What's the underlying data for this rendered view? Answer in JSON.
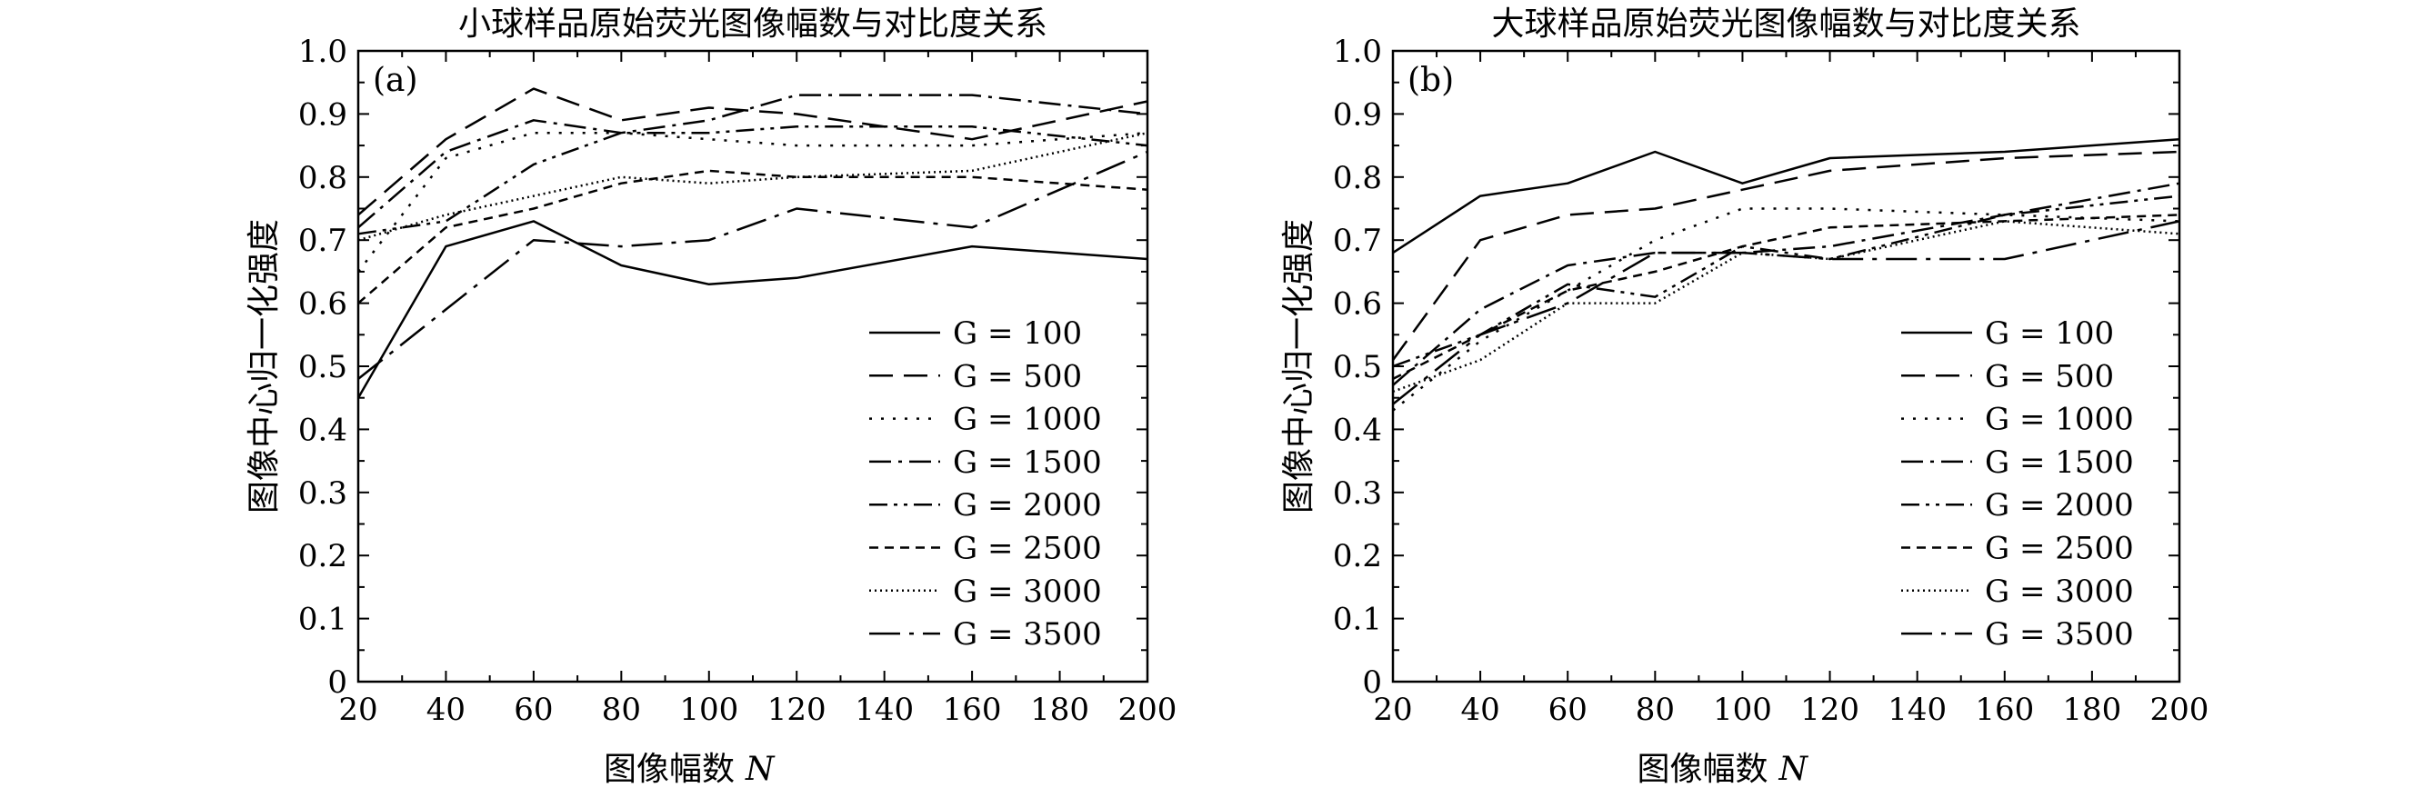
{
  "chart_data": [
    {
      "type": "line",
      "panel_label": "(a)",
      "title": "小球样品原始荧光图像幅数与对比度关系",
      "xlabel": "图像幅数",
      "xlabel_var": "N",
      "ylabel": "图像中心归一化强度",
      "xlim": [
        20,
        200
      ],
      "ylim": [
        0,
        1.0
      ],
      "x_ticks": [
        "20",
        "40",
        "60",
        "80",
        "100",
        "120",
        "140",
        "160",
        "180",
        "200"
      ],
      "y_ticks": [
        "0",
        "0.1",
        "0.2",
        "0.3",
        "0.4",
        "0.5",
        "0.6",
        "0.7",
        "0.8",
        "0.9",
        "1.0"
      ],
      "legend_position": "bottom-right",
      "x": [
        20,
        40,
        60,
        80,
        100,
        120,
        160,
        200
      ],
      "series": [
        {
          "name": "G = 100",
          "style": "solid",
          "values": [
            0.45,
            0.69,
            0.73,
            0.66,
            0.63,
            0.64,
            0.69,
            0.67
          ]
        },
        {
          "name": "G = 500",
          "style": "dash",
          "values": [
            0.74,
            0.86,
            0.94,
            0.89,
            0.91,
            0.9,
            0.86,
            0.92
          ]
        },
        {
          "name": "G = 1000",
          "style": "dot",
          "values": [
            0.65,
            0.83,
            0.87,
            0.87,
            0.86,
            0.85,
            0.85,
            0.87
          ]
        },
        {
          "name": "G = 1500",
          "style": "dashdot",
          "values": [
            0.72,
            0.84,
            0.89,
            0.87,
            0.89,
            0.93,
            0.93,
            0.9
          ]
        },
        {
          "name": "G = 2000",
          "style": "dashdotdot",
          "values": [
            0.71,
            0.73,
            0.82,
            0.87,
            0.87,
            0.88,
            0.88,
            0.85
          ]
        },
        {
          "name": "G = 2500",
          "style": "shortdash",
          "values": [
            0.6,
            0.72,
            0.75,
            0.79,
            0.81,
            0.8,
            0.8,
            0.78
          ]
        },
        {
          "name": "G = 3000",
          "style": "densedot",
          "values": [
            0.7,
            0.74,
            0.77,
            0.8,
            0.79,
            0.8,
            0.81,
            0.87
          ]
        },
        {
          "name": "G = 3500",
          "style": "longdashdot",
          "values": [
            0.48,
            0.59,
            0.7,
            0.69,
            0.7,
            0.75,
            0.72,
            0.84
          ]
        }
      ]
    },
    {
      "type": "line",
      "panel_label": "(b)",
      "title": "大球样品原始荧光图像幅数与对比度关系",
      "xlabel": "图像幅数",
      "xlabel_var": "N",
      "ylabel": "图像中心归一化强度",
      "xlim": [
        20,
        200
      ],
      "ylim": [
        0,
        1.0
      ],
      "x_ticks": [
        "20",
        "40",
        "60",
        "80",
        "100",
        "120",
        "140",
        "160",
        "180",
        "200"
      ],
      "y_ticks": [
        "0",
        "0.1",
        "0.2",
        "0.3",
        "0.4",
        "0.5",
        "0.6",
        "0.7",
        "0.8",
        "0.9",
        "1.0"
      ],
      "legend_position": "bottom-right",
      "x": [
        20,
        40,
        60,
        80,
        100,
        120,
        160,
        200
      ],
      "series": [
        {
          "name": "G = 100",
          "style": "solid",
          "values": [
            0.68,
            0.77,
            0.79,
            0.84,
            0.79,
            0.83,
            0.84,
            0.86
          ]
        },
        {
          "name": "G = 500",
          "style": "dash",
          "values": [
            0.51,
            0.7,
            0.74,
            0.75,
            0.78,
            0.81,
            0.83,
            0.84
          ]
        },
        {
          "name": "G = 1000",
          "style": "dot",
          "values": [
            0.43,
            0.54,
            0.62,
            0.7,
            0.75,
            0.75,
            0.74,
            0.73
          ]
        },
        {
          "name": "G = 1500",
          "style": "dashdot",
          "values": [
            0.47,
            0.59,
            0.66,
            0.68,
            0.68,
            0.69,
            0.74,
            0.79
          ]
        },
        {
          "name": "G = 2000",
          "style": "dashdotdot",
          "values": [
            0.5,
            0.55,
            0.63,
            0.61,
            0.69,
            0.67,
            0.74,
            0.77
          ]
        },
        {
          "name": "G = 2500",
          "style": "shortdash",
          "values": [
            0.48,
            0.55,
            0.62,
            0.65,
            0.69,
            0.72,
            0.73,
            0.74
          ]
        },
        {
          "name": "G = 3000",
          "style": "densedot",
          "values": [
            0.46,
            0.51,
            0.6,
            0.6,
            0.68,
            0.67,
            0.73,
            0.71
          ]
        },
        {
          "name": "G = 3500",
          "style": "longdashdot",
          "values": [
            0.44,
            0.55,
            0.6,
            0.68,
            0.68,
            0.67,
            0.67,
            0.73
          ]
        }
      ]
    }
  ]
}
